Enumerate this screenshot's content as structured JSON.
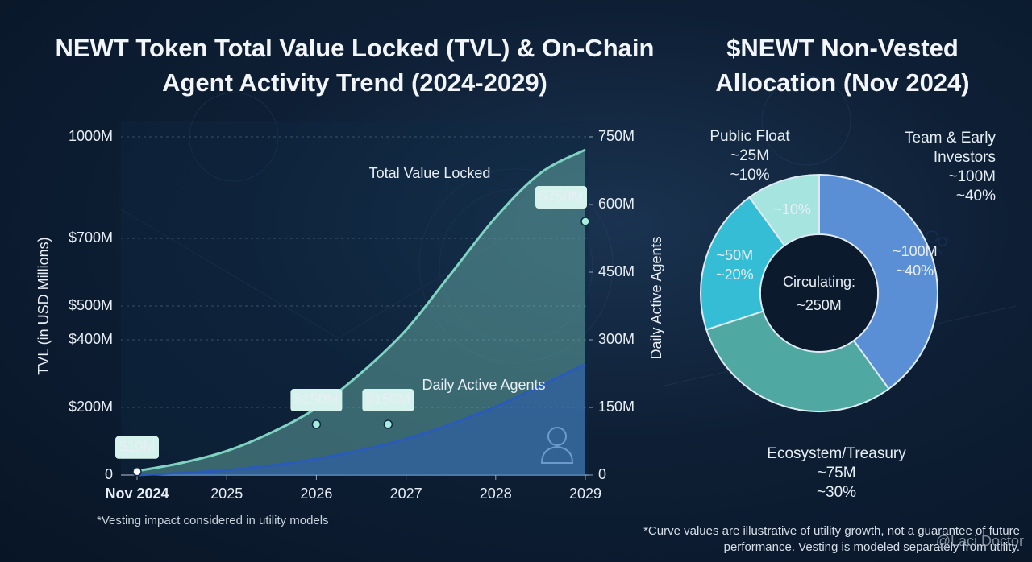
{
  "chart_data": [
    {
      "type": "line",
      "title": "NEWT Token Total Value Locked (TVL) & On-Chain Agent Activity Trend (2024-2029)",
      "y_label": "TVL (in USD Millions)",
      "y2_label": "Daily Active Agents",
      "footnote": "*Vesting impact considered in utility models",
      "xlim": [
        2024,
        2029
      ],
      "xticks": [
        {
          "value": 2024,
          "label": "Nov 2024"
        },
        2025,
        2026,
        2027,
        2028,
        2029
      ],
      "ylim": [
        0,
        1000
      ],
      "yticks": [
        0,
        {
          "value": 200,
          "label": "$200M"
        },
        {
          "value": 400,
          "label": "$400M"
        },
        {
          "value": 500,
          "label": "$500M"
        },
        {
          "value": 700,
          "label": "$700M"
        },
        {
          "value": 1000,
          "label": "1000M"
        }
      ],
      "y2lim": [
        0,
        750
      ],
      "y2ticks": [
        0,
        {
          "value": 150,
          "label": "150M"
        },
        {
          "value": 300,
          "label": "300M"
        },
        {
          "value": 450,
          "label": "450M"
        },
        {
          "value": 600,
          "label": "600M"
        },
        {
          "value": 750,
          "label": "750M"
        }
      ],
      "grid": true,
      "series": [
        {
          "name": "Total Value Locked",
          "color": "#7fd3c2",
          "x": [
            2024,
            2024.5,
            2025,
            2025.5,
            2026,
            2026.5,
            2027,
            2027.5,
            2028,
            2028.5,
            2029
          ],
          "values": [
            12,
            36,
            71,
            126,
            198,
            302,
            429,
            595,
            762,
            893,
            962
          ]
        },
        {
          "name": "Daily Active Agents",
          "color": "#2a5bb8",
          "axis": "y2",
          "x": [
            2024,
            2025,
            2026,
            2027,
            2028,
            2029
          ],
          "values": [
            0,
            11,
            36,
            80,
            152,
            246
          ]
        }
      ],
      "annotations": [
        {
          "text": "$10M",
          "x": 2024,
          "y": 10
        },
        {
          "text": "$150M",
          "x": 2026,
          "y": 150
        },
        {
          "text": "$150M",
          "x": 2026.8,
          "y": 150
        },
        {
          "text": "$750M",
          "x": 2029,
          "y": 750
        }
      ]
    },
    {
      "type": "donut",
      "title": "$NEWT Non-Vested Allocation (Nov 2024)",
      "center_title": "Circulating:",
      "center_value": "~250M",
      "categories": [
        "Team & Early Investors",
        "Ecosystem/Treasury",
        null,
        "Public Float"
      ],
      "values": [
        40,
        30,
        20,
        10
      ],
      "value_labels": [
        "~40%",
        "~30%",
        "~20%",
        "~10%"
      ],
      "amount_labels": [
        "~100M",
        "~75M",
        "~50M",
        "~25M"
      ],
      "colors": [
        "#5a8fd6",
        "#4fa9a2",
        "#35bdd6",
        "#a6e4df"
      ]
    }
  ],
  "footnote": "*Curve values are illustrative of utility growth, not a guarantee of future performance. Vesting is modeled separately from utility.",
  "watermark": "@Laci Doctor"
}
